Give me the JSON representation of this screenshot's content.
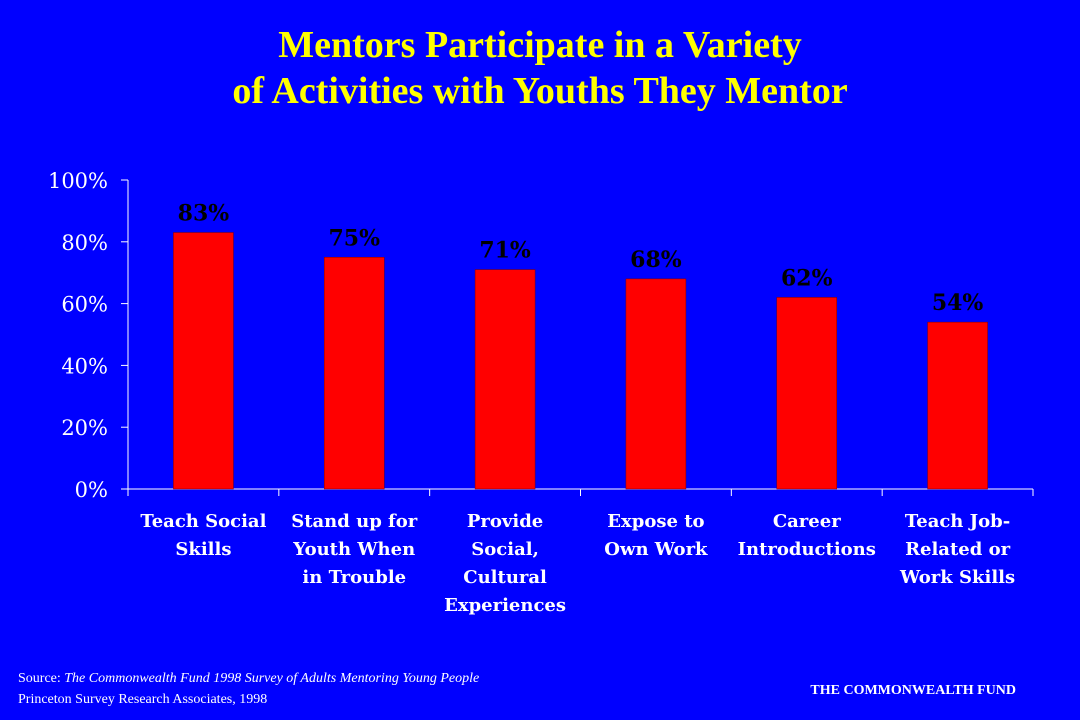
{
  "colors": {
    "background": "#0000FF",
    "title": "#FFFF00",
    "bar": "#FF0000",
    "text": "#FFFFFF",
    "value_label": "#000000"
  },
  "chart_data": {
    "type": "bar",
    "title_lines": [
      "Mentors Participate in a Variety",
      "of Activities with Youths They Mentor"
    ],
    "categories": [
      [
        "Teach Social",
        "Skills"
      ],
      [
        "Stand up for",
        "Youth When",
        "in Trouble"
      ],
      [
        "Provide",
        "Social,",
        "Cultural",
        "Experiences"
      ],
      [
        "Expose to",
        "Own Work"
      ],
      [
        "Career",
        "Introductions"
      ],
      [
        "Teach Job-",
        "Related or",
        "Work Skills"
      ]
    ],
    "values": [
      83,
      75,
      71,
      68,
      62,
      54
    ],
    "data_labels": [
      "83%",
      "75%",
      "71%",
      "68%",
      "62%",
      "54%"
    ],
    "y_ticks": [
      "0%",
      "20%",
      "40%",
      "60%",
      "80%",
      "100%"
    ],
    "ylim": [
      0,
      100
    ],
    "grid": false,
    "legend": "none"
  },
  "footer": {
    "source_prefix": "Source: ",
    "source_title": "The Commonwealth Fund 1998 Survey of Adults Mentoring Young People",
    "source_line2": "Princeton Survey Research Associates, 1998",
    "organization": "THE COMMONWEALTH FUND"
  }
}
